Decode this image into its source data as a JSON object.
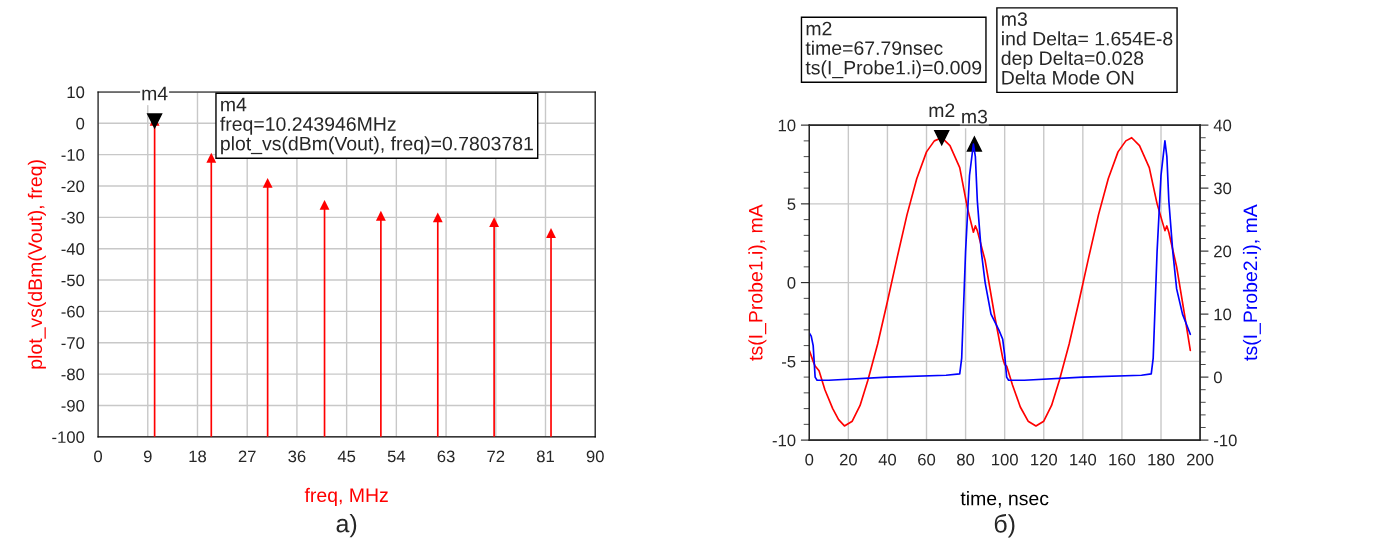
{
  "chart_data": [
    {
      "type": "lollipop",
      "xlabel": "freq, MHz",
      "ylabel": "plot_vs(dBm(Vout), freq)",
      "x": [
        10.24,
        20.5,
        30.7,
        41.0,
        51.2,
        61.5,
        71.7,
        82.0
      ],
      "series": [
        {
          "color": "#ff0000",
          "values": [
            0.78,
            -11,
            -19,
            -26,
            -29.5,
            -30,
            -31.5,
            -35
          ],
          "errors": [
            [
              -100,
              0.78
            ],
            [
              -100,
              -11
            ],
            [
              -100,
              -19
            ],
            [
              -100,
              -26
            ],
            [
              -100,
              -29.5
            ],
            [
              -100,
              -30
            ],
            [
              -100,
              -31.5
            ],
            [
              -100,
              -35
            ]
          ]
        }
      ],
      "xlim": [
        0,
        90
      ],
      "xticks": [
        0,
        9,
        18,
        27,
        36,
        45,
        54,
        63,
        72,
        81,
        90
      ],
      "ylim": [
        -100,
        10
      ],
      "yticks": [
        -100,
        -90,
        -80,
        -70,
        -60,
        -50,
        -40,
        -30,
        -20,
        -10,
        0,
        10
      ],
      "grid": true,
      "marker": "triangle",
      "annotations": [
        {
          "text": "m4",
          "x": 10.24,
          "y": 0.78
        },
        "m4\nfreq=10.243946MHz\nplot_vs(dBm(Vout), freq)=0.7803781",
        "а)"
      ]
    },
    {
      "type": "line",
      "xlabel": "time, nsec",
      "ylabel": "ts(I_Probe1.i), mA",
      "y2label": "ts(I_Probe2.i), mA",
      "series": [
        {
          "color": "#ff0000",
          "x": [
            0,
            2,
            3,
            5,
            8,
            12,
            15,
            18,
            22,
            26,
            30,
            35,
            40,
            45,
            50,
            55,
            60,
            64,
            67.8,
            72,
            77,
            81,
            84,
            85,
            86,
            90,
            95,
            99,
            100,
            101,
            104,
            108,
            112,
            116,
            120,
            124,
            128,
            133,
            138,
            143,
            148,
            153,
            158,
            162,
            165,
            169,
            174,
            178,
            182,
            183,
            184,
            188,
            192,
            195
          ],
          "values": [
            -4.3,
            -5.0,
            -5.3,
            -5.6,
            -6.8,
            -8.0,
            -8.7,
            -9.1,
            -8.8,
            -7.8,
            -6.2,
            -3.9,
            -1.2,
            1.6,
            4.3,
            6.6,
            8.3,
            9.0,
            9.2,
            8.7,
            7.3,
            4.7,
            3.2,
            3.6,
            3.3,
            1.4,
            -2.2,
            -4.8,
            -5.2,
            -5.3,
            -6.5,
            -7.9,
            -8.8,
            -9.1,
            -8.8,
            -7.8,
            -6.2,
            -3.9,
            -1.2,
            1.6,
            4.3,
            6.6,
            8.3,
            9.0,
            9.2,
            8.7,
            7.3,
            5.0,
            3.3,
            3.6,
            3.2,
            1.0,
            -2.0,
            -4.3
          ]
        },
        {
          "color": "#0000ff",
          "axis": "y2",
          "x": [
            0,
            1,
            2,
            3,
            4,
            10,
            40,
            70,
            77,
            78,
            80,
            82,
            84,
            85,
            86,
            88,
            90,
            93,
            97,
            99,
            100,
            101,
            102,
            110,
            140,
            170,
            175,
            176,
            178,
            180,
            182,
            183,
            184,
            186,
            188,
            191,
            195
          ],
          "values": [
            7.0,
            6.5,
            5.0,
            0,
            -0.5,
            -0.5,
            0,
            0.3,
            0.5,
            3,
            20,
            32,
            37,
            35,
            28,
            20,
            15,
            10,
            7.5,
            6,
            3.5,
            0,
            -0.5,
            -0.5,
            0,
            0.3,
            0.5,
            3,
            20,
            32,
            37.5,
            35,
            28,
            20,
            14,
            10,
            6.8
          ]
        }
      ],
      "xlim": [
        0,
        200
      ],
      "xticks": [
        0,
        20,
        40,
        60,
        80,
        100,
        120,
        140,
        160,
        180,
        200
      ],
      "ylim": [
        -10,
        10
      ],
      "yticks": [
        -10,
        -5,
        0,
        5,
        10
      ],
      "y2lim": [
        -10,
        40
      ],
      "y2ticks": [
        -10,
        0,
        10,
        20,
        30,
        40
      ],
      "grid": true,
      "annotations": [
        {
          "text": "m2",
          "x": 67.79,
          "y": 9.2
        },
        {
          "text": "m3",
          "x": 84.5,
          "y": 8.8
        },
        "m2\ntime=67.79nsec\nts(I_Probe1.i)=0.009",
        "m3\nind Delta= 1.654E-8\ndep Delta=0.028\nDelta Mode ON",
        "б)"
      ]
    }
  ]
}
